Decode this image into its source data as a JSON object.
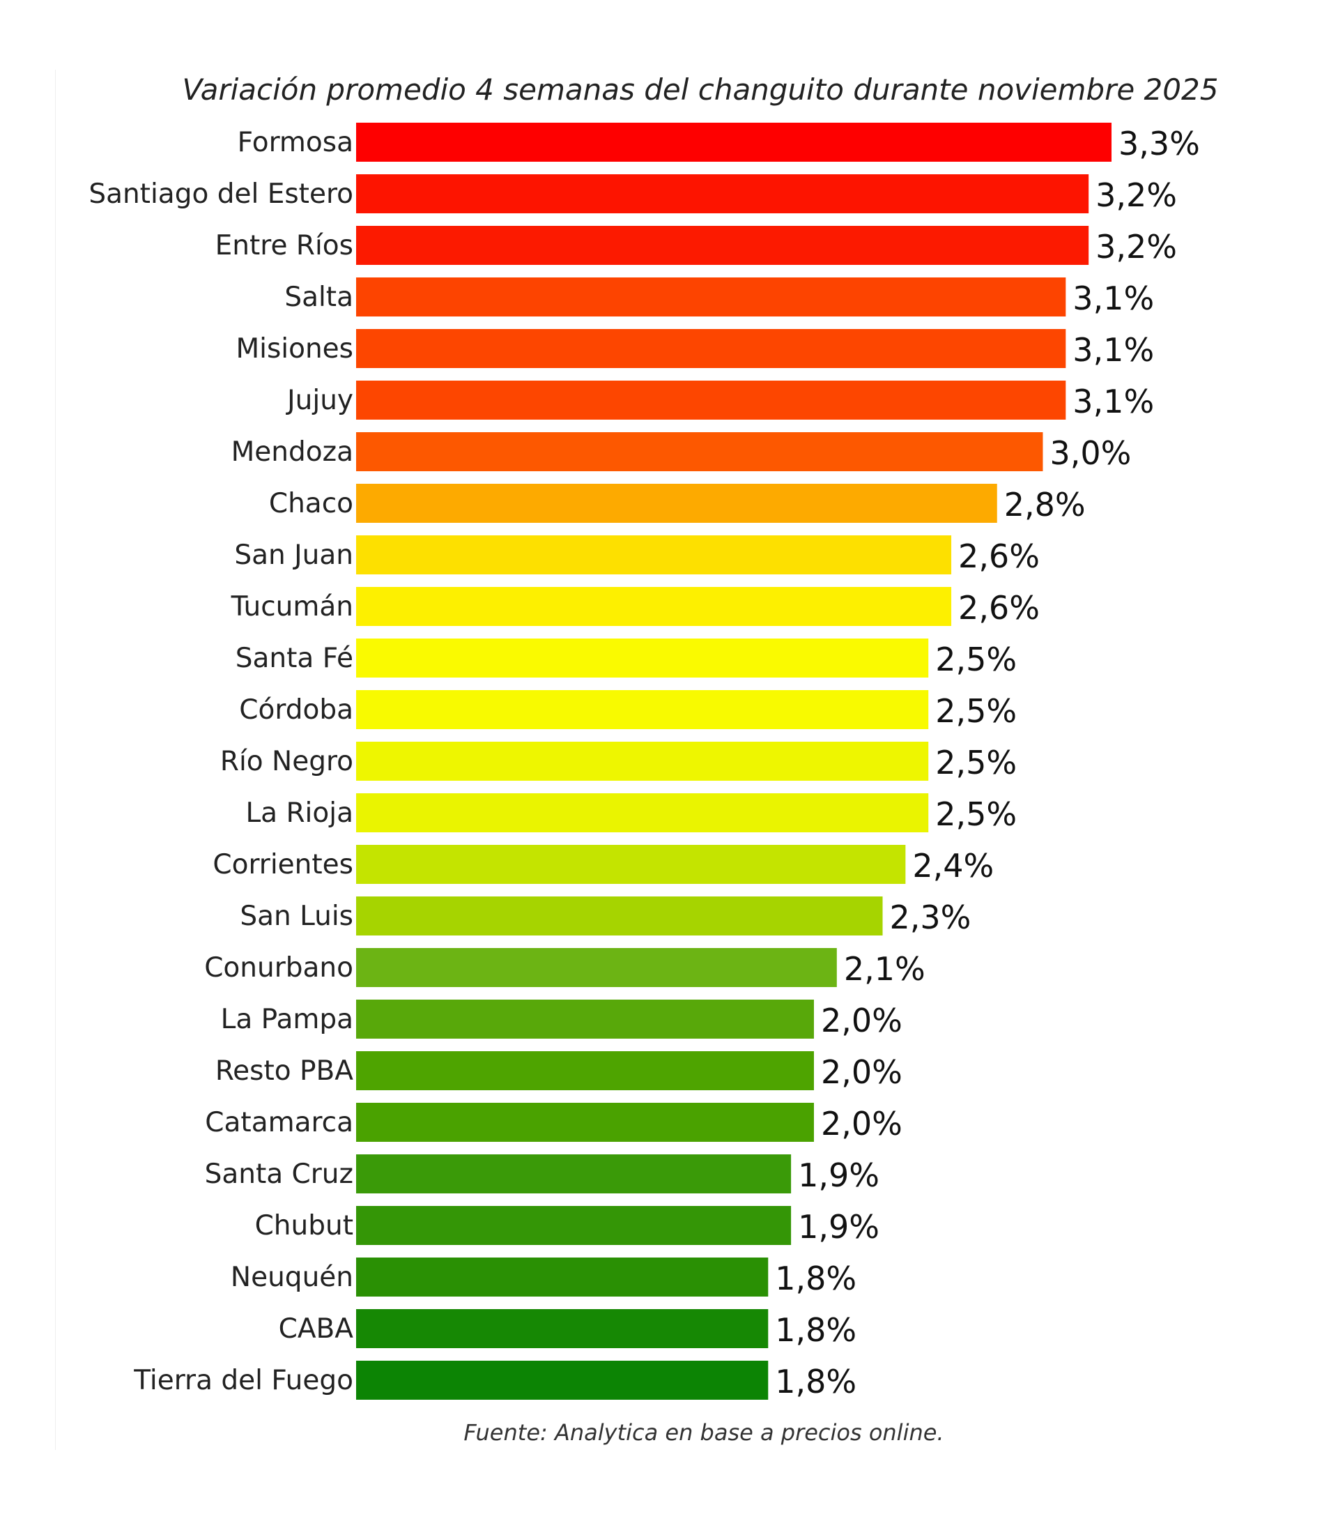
{
  "chart_data": {
    "type": "bar",
    "orientation": "horizontal",
    "title": "Variación promedio 4 semanas del changuito durante noviembre 2025",
    "source": "Fuente: Analytica en base a precios online.",
    "categories": [
      "Formosa",
      "Santiago del Estero",
      "Entre Ríos",
      "Salta",
      "Misiones",
      "Jujuy",
      "Mendoza",
      "Chaco",
      "San Juan",
      "Tucumán",
      "Santa Fé",
      "Córdoba",
      "Río Negro",
      "La Rioja",
      "Corrientes",
      "San Luis",
      "Conurbano",
      "La Pampa",
      "Resto PBA",
      "Catamarca",
      "Santa Cruz",
      "Chubut",
      "Neuquén",
      "CABA",
      "Tierra del Fuego"
    ],
    "values": [
      3.3,
      3.2,
      3.2,
      3.1,
      3.1,
      3.1,
      3.0,
      2.8,
      2.6,
      2.6,
      2.5,
      2.5,
      2.5,
      2.5,
      2.4,
      2.3,
      2.1,
      2.0,
      2.0,
      2.0,
      1.9,
      1.9,
      1.8,
      1.8,
      1.8
    ],
    "labels": [
      "3,3%",
      "3,2%",
      "3,2%",
      "3,1%",
      "3,1%",
      "3,1%",
      "3,0%",
      "2,8%",
      "2,6%",
      "2,6%",
      "2,5%",
      "2,5%",
      "2,5%",
      "2,5%",
      "2,4%",
      "2,3%",
      "2,1%",
      "2,0%",
      "2,0%",
      "2,0%",
      "1,9%",
      "1,9%",
      "1,8%",
      "1,8%",
      "1,8%"
    ],
    "colors": [
      "#fe0000",
      "#fd1400",
      "#fc1a00",
      "#fd4400",
      "#fd4600",
      "#fd4600",
      "#fd5800",
      "#fdaa00",
      "#fde000",
      "#fdf000",
      "#fafa00",
      "#f8fa00",
      "#eef600",
      "#eaf400",
      "#c4e400",
      "#a6d400",
      "#6cb414",
      "#58a80a",
      "#4ea400",
      "#4aa200",
      "#3a9a08",
      "#349606",
      "#2a9004",
      "#168804",
      "#0c8404"
    ],
    "xlim": [
      0,
      3.3
    ],
    "xlabel": "",
    "ylabel": "",
    "grid": false,
    "legend": "none"
  }
}
